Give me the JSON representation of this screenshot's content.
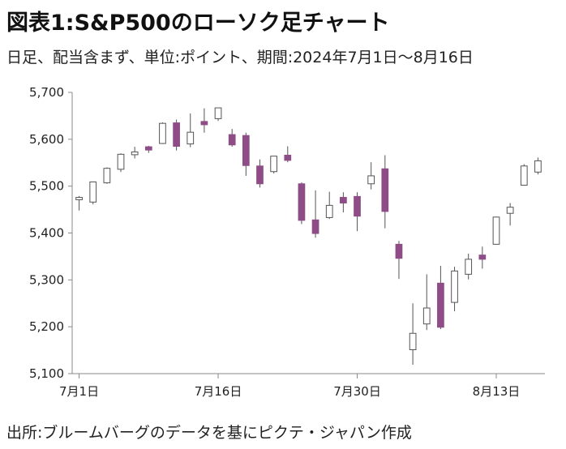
{
  "title": "図表1:S&P500のローソク足チャート",
  "subtitle": "日足、配当含まず、単位:ポイント、期間:2024年7月1日〜8月16日",
  "source": "出所:ブルームバーグのデータを基にピクテ・ジャパン作成",
  "colors": {
    "up_fill": "#ffffff",
    "down_fill": "#8e4d86",
    "candle_stroke": "#555555",
    "axis": "#888888"
  },
  "chart_data": {
    "type": "candlestick",
    "y_ticks": [
      "5,100",
      "5,200",
      "5,300",
      "5,400",
      "5,500",
      "5,600",
      "5,700"
    ],
    "y_tick_values": [
      5100,
      5200,
      5300,
      5400,
      5500,
      5600,
      5700
    ],
    "ylim": [
      5100,
      5700
    ],
    "x_ticks": [
      {
        "label": "7月1日",
        "index": 0
      },
      {
        "label": "7月16日",
        "index": 10
      },
      {
        "label": "7月30日",
        "index": 20
      },
      {
        "label": "8月13日",
        "index": 30
      }
    ],
    "x_count": 34,
    "candles": [
      {
        "date": "2024-07-01",
        "o": 5471,
        "h": 5479,
        "l": 5448,
        "c": 5476
      },
      {
        "date": "2024-07-02",
        "o": 5466,
        "h": 5510,
        "l": 5461,
        "c": 5509
      },
      {
        "date": "2024-07-03",
        "o": 5507,
        "h": 5540,
        "l": 5505,
        "c": 5538
      },
      {
        "date": "2024-07-05",
        "o": 5536,
        "h": 5570,
        "l": 5530,
        "c": 5568
      },
      {
        "date": "2024-07-08",
        "o": 5567,
        "h": 5584,
        "l": 5559,
        "c": 5573
      },
      {
        "date": "2024-07-09",
        "o": 5584,
        "h": 5586,
        "l": 5571,
        "c": 5577
      },
      {
        "date": "2024-07-10",
        "o": 5591,
        "h": 5636,
        "l": 5590,
        "c": 5634
      },
      {
        "date": "2024-07-11",
        "o": 5635,
        "h": 5642,
        "l": 5576,
        "c": 5585
      },
      {
        "date": "2024-07-12",
        "o": 5590,
        "h": 5655,
        "l": 5583,
        "c": 5615
      },
      {
        "date": "2024-07-15",
        "o": 5638,
        "h": 5666,
        "l": 5614,
        "c": 5631
      },
      {
        "date": "2024-07-16",
        "o": 5644,
        "h": 5667,
        "l": 5639,
        "c": 5667
      },
      {
        "date": "2024-07-17",
        "o": 5610,
        "h": 5622,
        "l": 5584,
        "c": 5588
      },
      {
        "date": "2024-07-18",
        "o": 5608,
        "h": 5614,
        "l": 5522,
        "c": 5544
      },
      {
        "date": "2024-07-19",
        "o": 5543,
        "h": 5557,
        "l": 5497,
        "c": 5505
      },
      {
        "date": "2024-07-22",
        "o": 5531,
        "h": 5564,
        "l": 5527,
        "c": 5564
      },
      {
        "date": "2024-07-23",
        "o": 5566,
        "h": 5585,
        "l": 5551,
        "c": 5555
      },
      {
        "date": "2024-07-24",
        "o": 5505,
        "h": 5508,
        "l": 5419,
        "c": 5427
      },
      {
        "date": "2024-07-25",
        "o": 5428,
        "h": 5491,
        "l": 5390,
        "c": 5399
      },
      {
        "date": "2024-07-26",
        "o": 5433,
        "h": 5488,
        "l": 5430,
        "c": 5459
      },
      {
        "date": "2024-07-29",
        "o": 5476,
        "h": 5487,
        "l": 5444,
        "c": 5464
      },
      {
        "date": "2024-07-30",
        "o": 5478,
        "h": 5487,
        "l": 5404,
        "c": 5436
      },
      {
        "date": "2024-07-31",
        "o": 5505,
        "h": 5551,
        "l": 5493,
        "c": 5522
      },
      {
        "date": "2024-08-01",
        "o": 5537,
        "h": 5566,
        "l": 5410,
        "c": 5446
      },
      {
        "date": "2024-08-02",
        "o": 5376,
        "h": 5383,
        "l": 5302,
        "c": 5346
      },
      {
        "date": "2024-08-05",
        "o": 5151,
        "h": 5250,
        "l": 5119,
        "c": 5186
      },
      {
        "date": "2024-08-06",
        "o": 5206,
        "h": 5312,
        "l": 5193,
        "c": 5240
      },
      {
        "date": "2024-08-07",
        "o": 5293,
        "h": 5330,
        "l": 5195,
        "c": 5199
      },
      {
        "date": "2024-08-08",
        "o": 5252,
        "h": 5328,
        "l": 5233,
        "c": 5319
      },
      {
        "date": "2024-08-09",
        "o": 5312,
        "h": 5356,
        "l": 5301,
        "c": 5344
      },
      {
        "date": "2024-08-12",
        "o": 5353,
        "h": 5371,
        "l": 5324,
        "c": 5344
      },
      {
        "date": "2024-08-13",
        "o": 5376,
        "h": 5435,
        "l": 5376,
        "c": 5434
      },
      {
        "date": "2024-08-14",
        "o": 5442,
        "h": 5464,
        "l": 5416,
        "c": 5455
      },
      {
        "date": "2024-08-15",
        "o": 5502,
        "h": 5547,
        "l": 5501,
        "c": 5543
      },
      {
        "date": "2024-08-16",
        "o": 5530,
        "h": 5561,
        "l": 5525,
        "c": 5554
      }
    ]
  }
}
